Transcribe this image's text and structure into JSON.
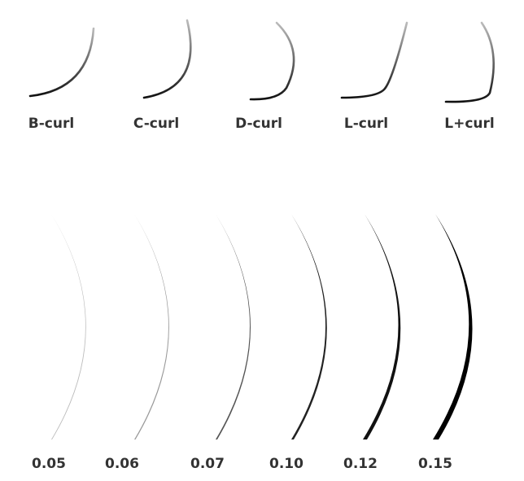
{
  "curls": [
    {
      "label": "B-curl"
    },
    {
      "label": "C-curl"
    },
    {
      "label": "D-curl"
    },
    {
      "label": "L-curl"
    },
    {
      "label": "L+curl"
    }
  ],
  "thicknesses": [
    {
      "label": "0.05"
    },
    {
      "label": "0.06"
    },
    {
      "label": "0.07"
    },
    {
      "label": "0.10"
    },
    {
      "label": "0.12"
    },
    {
      "label": "0.15"
    }
  ]
}
